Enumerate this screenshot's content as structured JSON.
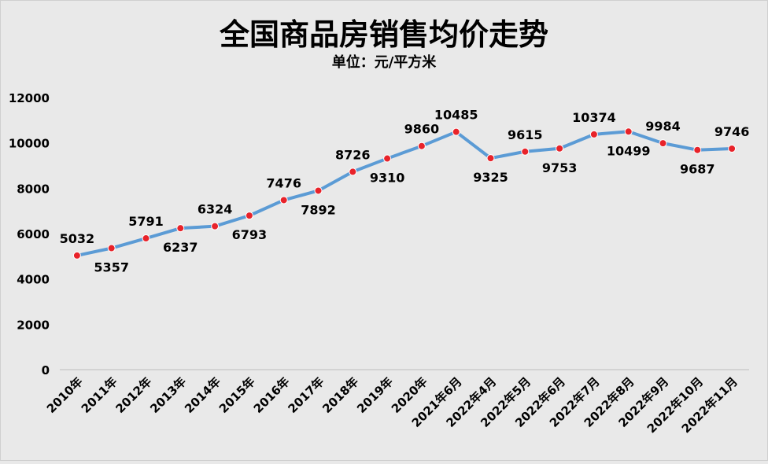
{
  "chart_data": {
    "type": "line",
    "title": "全国商品房销售均价走势",
    "subtitle": "单位：元/平方米",
    "categories": [
      "2010年",
      "2011年",
      "2012年",
      "2013年",
      "2014年",
      "2015年",
      "2016年",
      "2017年",
      "2018年",
      "2019年",
      "2020年",
      "2021年6月",
      "2022年4月",
      "2022年5月",
      "2022年6月",
      "2022年7月",
      "2022年8月",
      "2022年9月",
      "2022年10月",
      "2022年11月"
    ],
    "values": [
      5032,
      5357,
      5791,
      6237,
      6324,
      6793,
      7476,
      7892,
      8726,
      9310,
      9860,
      10485,
      9325,
      9615,
      9753,
      10374,
      10499,
      9984,
      9687,
      9746
    ],
    "label_pos": [
      "above",
      "below",
      "above",
      "below",
      "above",
      "below",
      "above",
      "below",
      "above",
      "below",
      "above",
      "above",
      "below",
      "above",
      "below",
      "above",
      "below",
      "above",
      "below",
      "above"
    ],
    "ylim": [
      0,
      12000
    ],
    "yticks": [
      0,
      2000,
      4000,
      6000,
      8000,
      10000,
      12000
    ],
    "grid": false,
    "legend": "none",
    "line_color": "#5b9bd5",
    "marker_color": "#e8232a"
  }
}
